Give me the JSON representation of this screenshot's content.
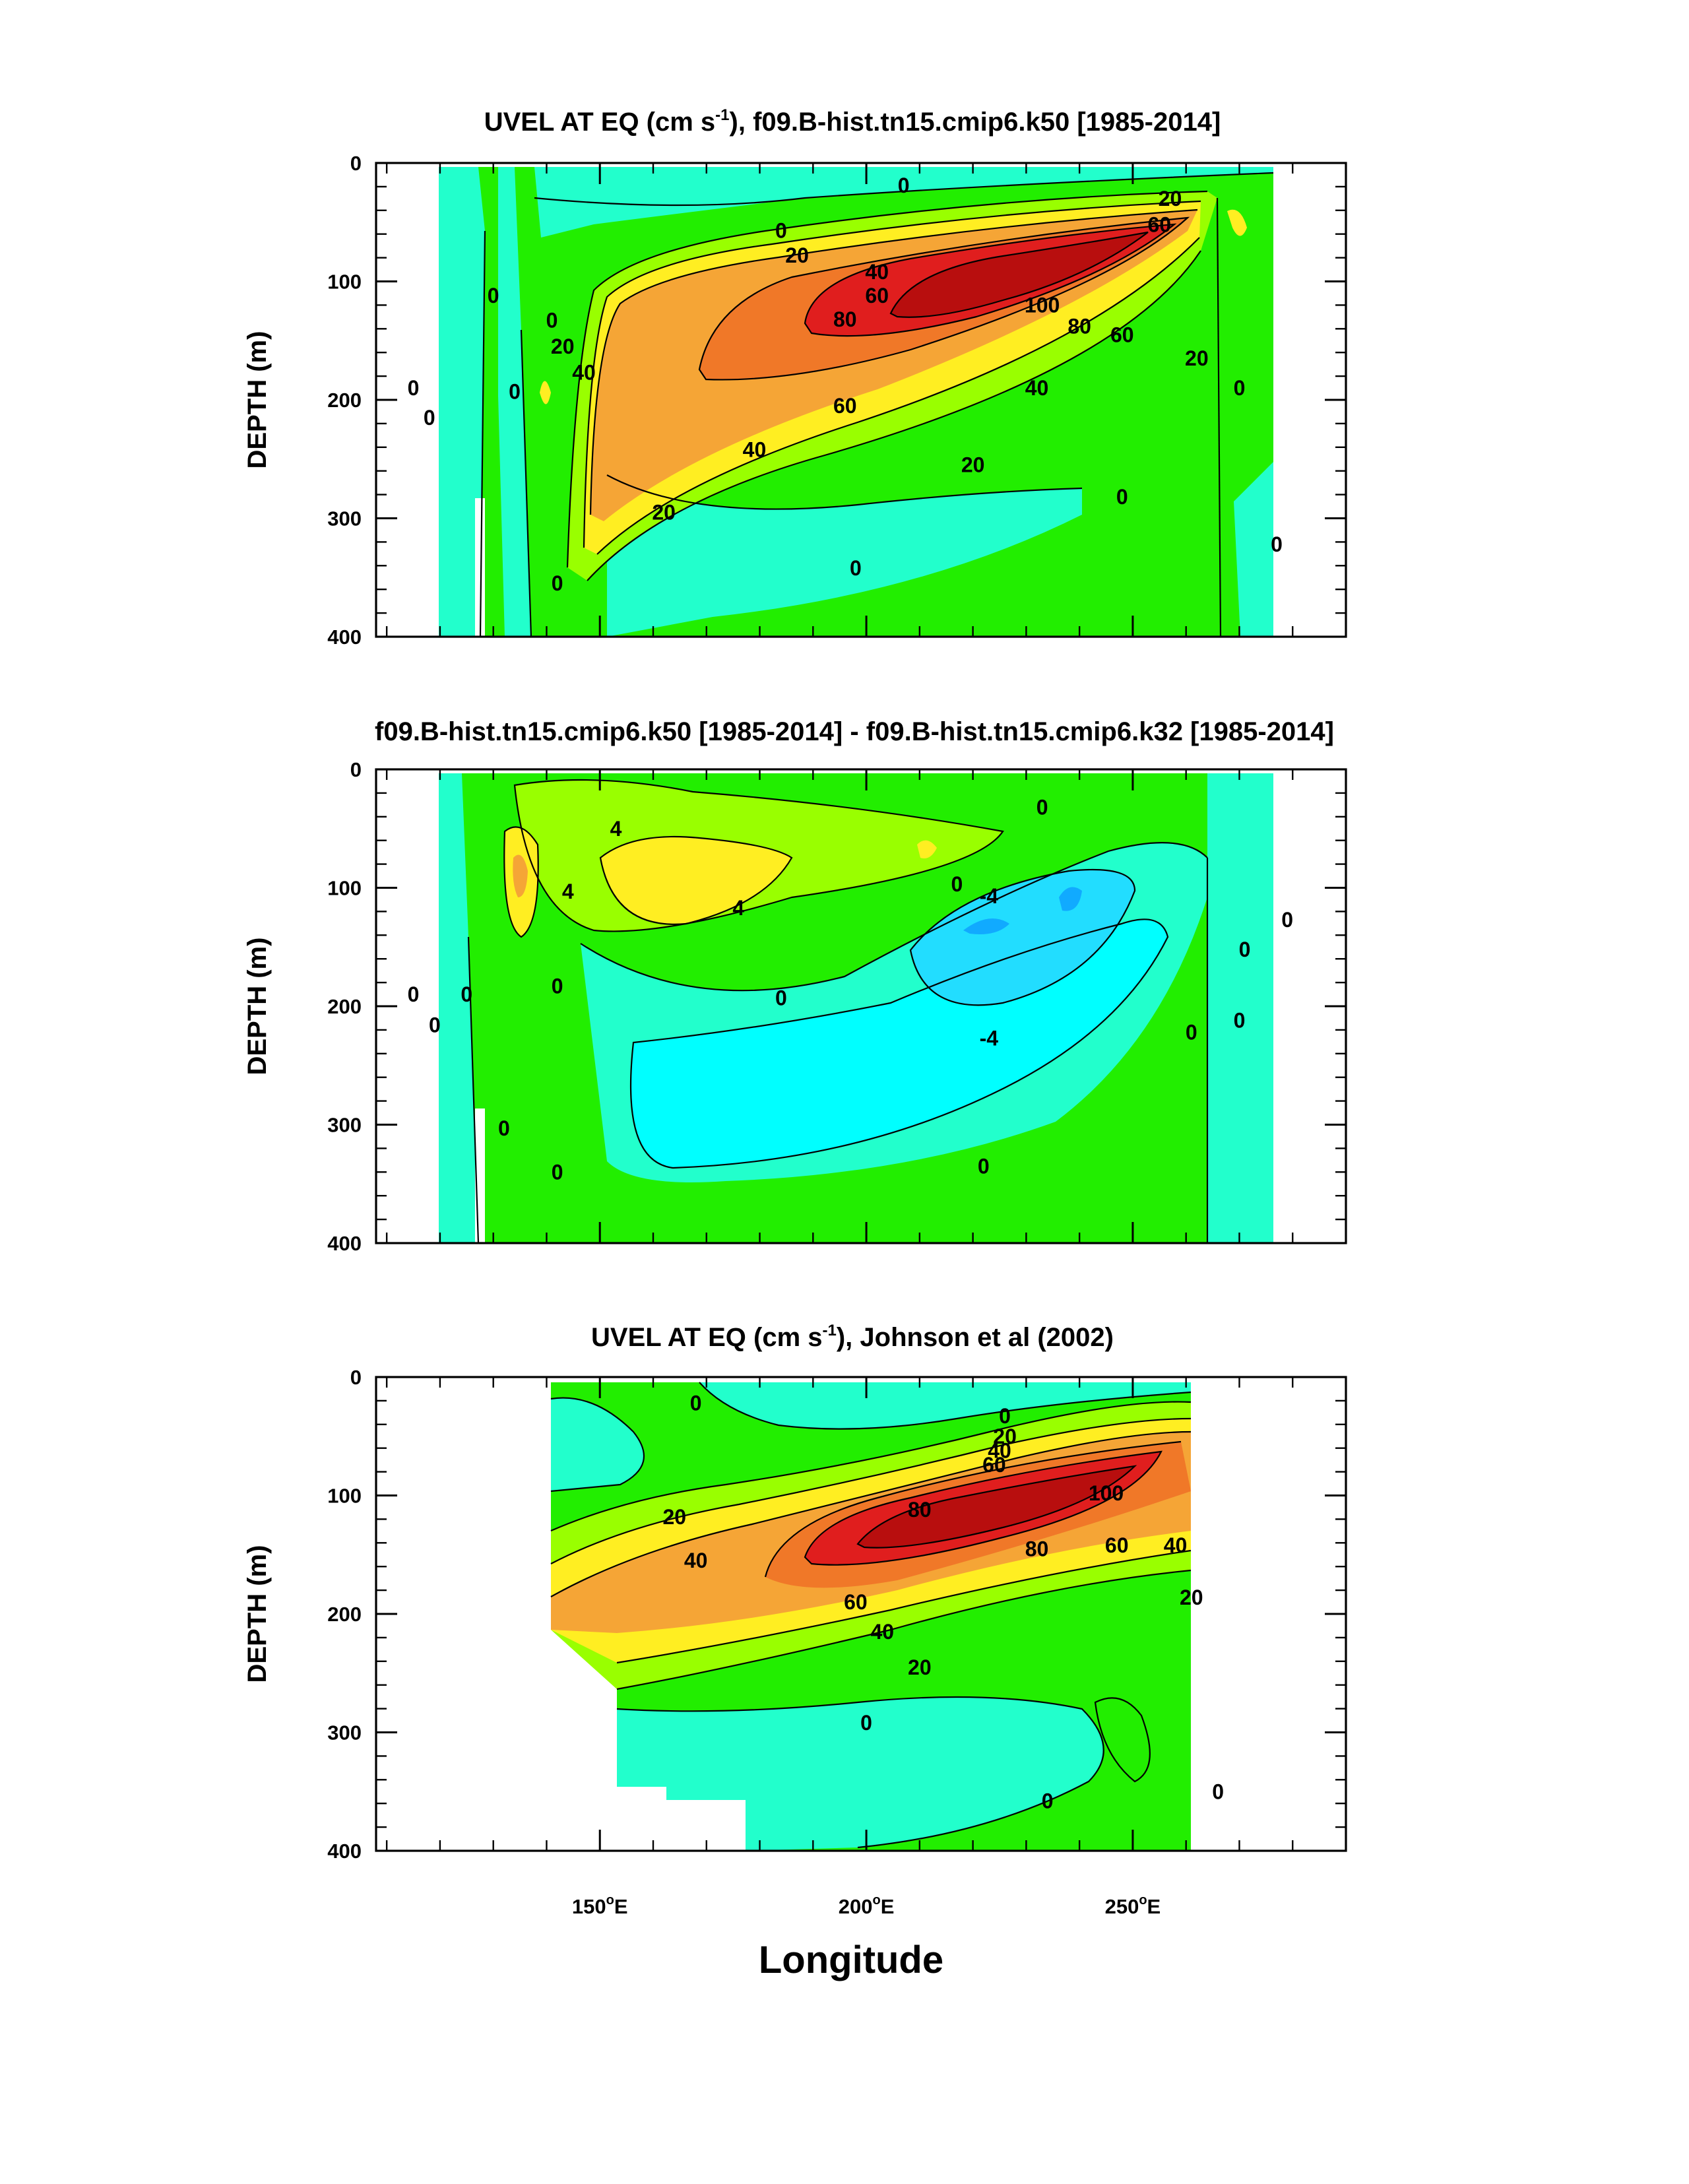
{
  "chart_data": [
    {
      "type": "heatmap",
      "title_main": "UVEL AT EQ (cm s",
      "title_sup": "-1",
      "title_rest": "), f09.B-hist.tn15.cmip6.k50 [1985-2014]",
      "ylabel": "DEPTH (m)",
      "xlabel": "",
      "xlim": [
        108,
        290
      ],
      "ylim": [
        0,
        400
      ],
      "y_reversed": true,
      "yticks": [
        "0",
        "100",
        "200",
        "300",
        "400"
      ],
      "xticks_labels": [],
      "contour_labels": [
        {
          "text": "0",
          "lon": 207,
          "depth": 19
        },
        {
          "text": "20",
          "lon": 257,
          "depth": 30
        },
        {
          "text": "0",
          "lon": 184,
          "depth": 57
        },
        {
          "text": "60",
          "lon": 255,
          "depth": 52
        },
        {
          "text": "20",
          "lon": 187,
          "depth": 78
        },
        {
          "text": "40",
          "lon": 202,
          "depth": 92
        },
        {
          "text": "60",
          "lon": 202,
          "depth": 112
        },
        {
          "text": "80",
          "lon": 196,
          "depth": 132
        },
        {
          "text": "100",
          "lon": 233,
          "depth": 120
        },
        {
          "text": "80",
          "lon": 240,
          "depth": 138
        },
        {
          "text": "60",
          "lon": 248,
          "depth": 145
        },
        {
          "text": "20",
          "lon": 262,
          "depth": 165
        },
        {
          "text": "20",
          "lon": 143,
          "depth": 155
        },
        {
          "text": "40",
          "lon": 147,
          "depth": 177
        },
        {
          "text": "60",
          "lon": 196,
          "depth": 205
        },
        {
          "text": "40",
          "lon": 232,
          "depth": 190
        },
        {
          "text": "0",
          "lon": 115,
          "depth": 190
        },
        {
          "text": "0",
          "lon": 118,
          "depth": 215
        },
        {
          "text": "0",
          "lon": 130,
          "depth": 112
        },
        {
          "text": "0",
          "lon": 134,
          "depth": 193
        },
        {
          "text": "0",
          "lon": 270,
          "depth": 190
        },
        {
          "text": "0",
          "lon": 141,
          "depth": 133
        },
        {
          "text": "40",
          "lon": 179,
          "depth": 242
        },
        {
          "text": "20",
          "lon": 220,
          "depth": 255
        },
        {
          "text": "20",
          "lon": 162,
          "depth": 295
        },
        {
          "text": "0",
          "lon": 248,
          "depth": 282
        },
        {
          "text": "0",
          "lon": 277,
          "depth": 322
        },
        {
          "text": "0",
          "lon": 142,
          "depth": 355
        },
        {
          "text": "0",
          "lon": 198,
          "depth": 342
        }
      ]
    },
    {
      "type": "heatmap",
      "title": "f09.B-hist.tn15.cmip6.k50 [1985-2014] - f09.B-hist.tn15.cmip6.k32 [1985-2014]",
      "ylabel": "DEPTH (m)",
      "xlabel": "",
      "xlim": [
        108,
        290
      ],
      "ylim": [
        0,
        400
      ],
      "y_reversed": true,
      "yticks": [
        "0",
        "100",
        "200",
        "300",
        "400"
      ],
      "xticks_labels": [],
      "contour_labels": [
        {
          "text": "0",
          "lon": 233,
          "depth": 32
        },
        {
          "text": "4",
          "lon": 153,
          "depth": 50
        },
        {
          "text": "4",
          "lon": 144,
          "depth": 103
        },
        {
          "text": "4",
          "lon": 176,
          "depth": 117
        },
        {
          "text": "0",
          "lon": 217,
          "depth": 97
        },
        {
          "text": "-4",
          "lon": 223,
          "depth": 107
        },
        {
          "text": "0",
          "lon": 184,
          "depth": 193
        },
        {
          "text": "-4",
          "lon": 223,
          "depth": 227
        },
        {
          "text": "0",
          "lon": 115,
          "depth": 190
        },
        {
          "text": "0",
          "lon": 119,
          "depth": 216
        },
        {
          "text": "0",
          "lon": 125,
          "depth": 190
        },
        {
          "text": "0",
          "lon": 142,
          "depth": 183
        },
        {
          "text": "0",
          "lon": 271,
          "depth": 152
        },
        {
          "text": "0",
          "lon": 279,
          "depth": 127
        },
        {
          "text": "0",
          "lon": 270,
          "depth": 212
        },
        {
          "text": "0",
          "lon": 261,
          "depth": 222
        },
        {
          "text": "0",
          "lon": 132,
          "depth": 303
        },
        {
          "text": "0",
          "lon": 142,
          "depth": 340
        },
        {
          "text": "0",
          "lon": 222,
          "depth": 335
        }
      ]
    },
    {
      "type": "heatmap",
      "title_main": "UVEL AT EQ (cm s",
      "title_sup": "-1",
      "title_rest": "), Johnson et al (2002)",
      "ylabel": "DEPTH (m)",
      "xlabel": "Longitude",
      "xlim": [
        108,
        290
      ],
      "ylim": [
        0,
        400
      ],
      "y_reversed": true,
      "yticks": [
        "0",
        "100",
        "200",
        "300",
        "400"
      ],
      "xticks_labels": [
        {
          "value": 150,
          "label": "150",
          "suffix": "E"
        },
        {
          "value": 200,
          "label": "200",
          "suffix": "E"
        },
        {
          "value": 250,
          "label": "250",
          "suffix": "E"
        }
      ],
      "contour_labels": [
        {
          "text": "0",
          "lon": 168,
          "depth": 22
        },
        {
          "text": "0",
          "lon": 226,
          "depth": 33
        },
        {
          "text": "20",
          "lon": 226,
          "depth": 50
        },
        {
          "text": "40",
          "lon": 225,
          "depth": 62
        },
        {
          "text": "60",
          "lon": 224,
          "depth": 74
        },
        {
          "text": "80",
          "lon": 210,
          "depth": 112
        },
        {
          "text": "100",
          "lon": 245,
          "depth": 98
        },
        {
          "text": "80",
          "lon": 232,
          "depth": 145
        },
        {
          "text": "60",
          "lon": 247,
          "depth": 142
        },
        {
          "text": "40",
          "lon": 258,
          "depth": 142
        },
        {
          "text": "20",
          "lon": 164,
          "depth": 118
        },
        {
          "text": "40",
          "lon": 168,
          "depth": 155
        },
        {
          "text": "20",
          "lon": 261,
          "depth": 186
        },
        {
          "text": "60",
          "lon": 198,
          "depth": 190
        },
        {
          "text": "40",
          "lon": 203,
          "depth": 215
        },
        {
          "text": "20",
          "lon": 210,
          "depth": 245
        },
        {
          "text": "0",
          "lon": 200,
          "depth": 292
        },
        {
          "text": "0",
          "lon": 266,
          "depth": 350
        },
        {
          "text": "0",
          "lon": 234,
          "depth": 358
        }
      ]
    }
  ]
}
